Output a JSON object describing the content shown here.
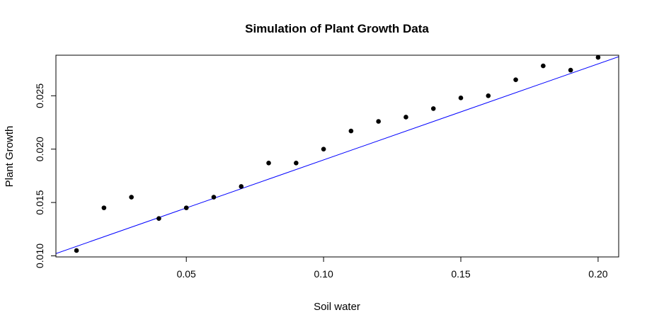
{
  "chart_data": {
    "type": "scatter",
    "title": "Simulation of Plant Growth Data",
    "xlabel": "Soil water",
    "ylabel": "Plant Growth",
    "xlim": [
      0.0025,
      0.2075
    ],
    "ylim": [
      0.0099,
      0.0288
    ],
    "x_ticks": [
      0.05,
      0.1,
      0.15,
      0.2
    ],
    "x_tick_labels": [
      "0.05",
      "0.10",
      "0.15",
      "0.20"
    ],
    "y_ticks": [
      0.01,
      0.015,
      0.02,
      0.025
    ],
    "y_tick_labels": [
      "0.010",
      "0.015",
      "0.020",
      "0.025"
    ],
    "points": [
      {
        "x": 0.01,
        "y": 0.0105
      },
      {
        "x": 0.02,
        "y": 0.0145
      },
      {
        "x": 0.03,
        "y": 0.0155
      },
      {
        "x": 0.04,
        "y": 0.0135
      },
      {
        "x": 0.05,
        "y": 0.0145
      },
      {
        "x": 0.06,
        "y": 0.0155
      },
      {
        "x": 0.07,
        "y": 0.0165
      },
      {
        "x": 0.08,
        "y": 0.0187
      },
      {
        "x": 0.09,
        "y": 0.0187
      },
      {
        "x": 0.1,
        "y": 0.02
      },
      {
        "x": 0.11,
        "y": 0.0217
      },
      {
        "x": 0.12,
        "y": 0.0226
      },
      {
        "x": 0.13,
        "y": 0.023
      },
      {
        "x": 0.14,
        "y": 0.0238
      },
      {
        "x": 0.15,
        "y": 0.0248
      },
      {
        "x": 0.16,
        "y": 0.025
      },
      {
        "x": 0.17,
        "y": 0.0265
      },
      {
        "x": 0.18,
        "y": 0.0278
      },
      {
        "x": 0.19,
        "y": 0.0274
      },
      {
        "x": 0.2,
        "y": 0.0286
      }
    ],
    "fit_line": {
      "intercept": 0.00999,
      "slope": 0.09,
      "color": "#0000ff"
    },
    "point_color": "#000000",
    "grid": false,
    "legend": "none"
  }
}
